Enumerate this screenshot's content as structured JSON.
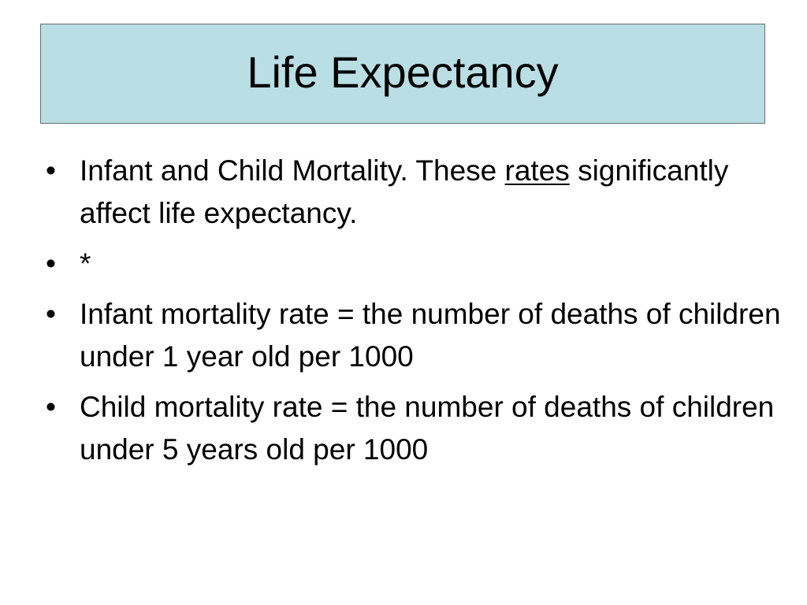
{
  "slide": {
    "title": "Life Expectancy",
    "bullet_symbol": "•",
    "bullets": [
      {
        "before": "Infant and Child Mortality. These ",
        "underlined": "rates",
        "after": " significantly affect life expectancy."
      },
      {
        "text": "*"
      },
      {
        "text": "Infant mortality rate = the number of deaths of children under 1 year old per 1000"
      },
      {
        "text": "Child mortality rate = the number of deaths of children under 5 years old per 1000"
      }
    ]
  }
}
